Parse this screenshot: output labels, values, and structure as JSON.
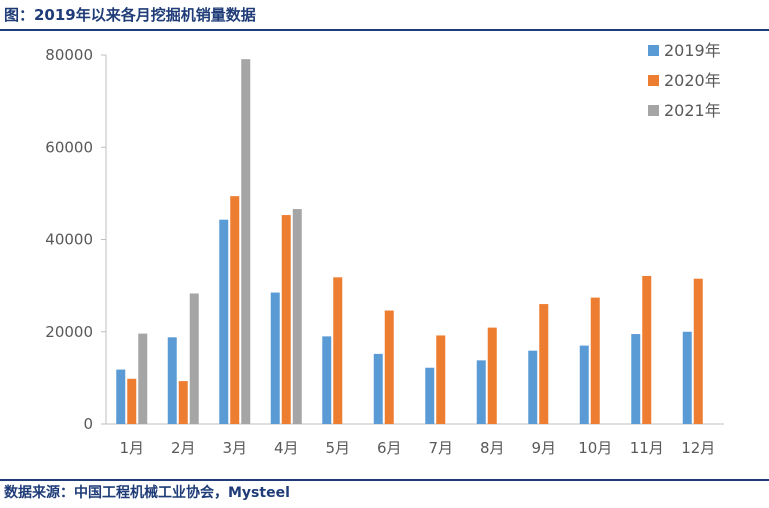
{
  "header": {
    "title": "图：2019年以来各月挖掘机销量数据"
  },
  "footer": {
    "source": "数据来源：中国工程机械工业协会，Mysteel"
  },
  "colors": {
    "series_2019": "#5b9bd5",
    "series_2020": "#ed7d31",
    "series_2021": "#a5a5a5",
    "brand": "#1f3c78",
    "text": "#595959",
    "axis": "#bfbfbf"
  },
  "chart_data": {
    "type": "bar",
    "title": "",
    "xlabel": "",
    "ylabel": "",
    "ylim": [
      0,
      80000
    ],
    "yticks": [
      0,
      20000,
      40000,
      60000,
      80000
    ],
    "grid": false,
    "legend_position": "top-right",
    "categories": [
      "1月",
      "2月",
      "3月",
      "4月",
      "5月",
      "6月",
      "7月",
      "8月",
      "9月",
      "10月",
      "11月",
      "12月"
    ],
    "series": [
      {
        "name": "2019年",
        "values": [
          11800,
          18800,
          44300,
          28500,
          19000,
          15200,
          12200,
          13800,
          15900,
          17000,
          19500,
          20000
        ]
      },
      {
        "name": "2020年",
        "values": [
          9800,
          9300,
          49400,
          45300,
          31800,
          24600,
          19200,
          20900,
          26000,
          27400,
          32100,
          31500
        ]
      },
      {
        "name": "2021年",
        "values": [
          19600,
          28300,
          79100,
          46600,
          null,
          null,
          null,
          null,
          null,
          null,
          null,
          null
        ]
      }
    ]
  }
}
